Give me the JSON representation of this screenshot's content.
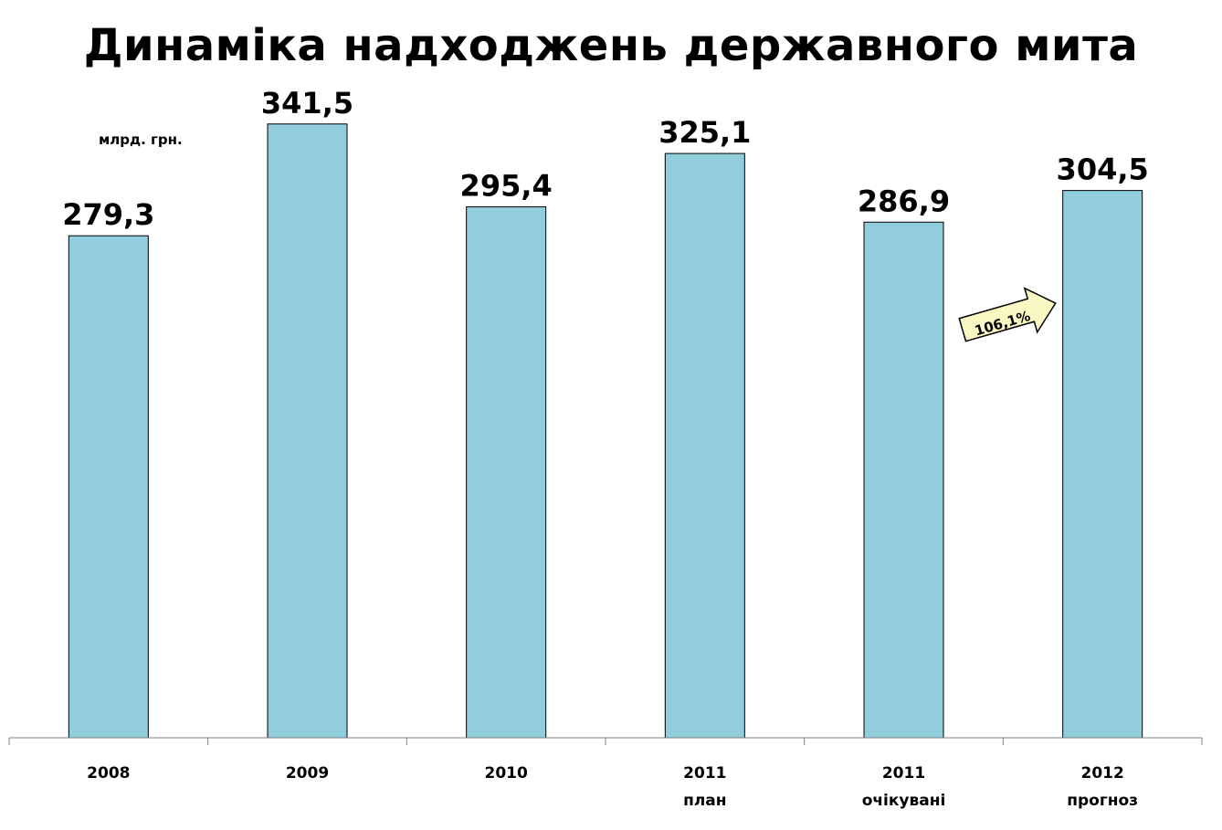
{
  "title": "Динаміка надходжень державного мита",
  "unit_label": "млрд. грн.",
  "growth_annotation": "106,1%",
  "colors": {
    "bar": "#92cddc",
    "bar_stroke": "#000000",
    "arrow_fill": "#fbf7c2"
  },
  "chart_data": {
    "type": "bar",
    "categories": [
      [
        "2008"
      ],
      [
        "2009"
      ],
      [
        "2010"
      ],
      [
        "2011",
        "план"
      ],
      [
        "2011",
        "очікувані"
      ],
      [
        "2012",
        "прогноз"
      ]
    ],
    "values": [
      279.3,
      341.5,
      295.4,
      325.1,
      286.9,
      304.5
    ],
    "data_labels": [
      "279,3",
      "341,5",
      "295,4",
      "325,1",
      "286,9",
      "304,5"
    ],
    "title": "Динаміка надходжень державного мита",
    "ylabel": "млрд. грн.",
    "xlabel": "",
    "ylim": [
      0,
      380
    ],
    "grid": false,
    "legend": "none"
  }
}
